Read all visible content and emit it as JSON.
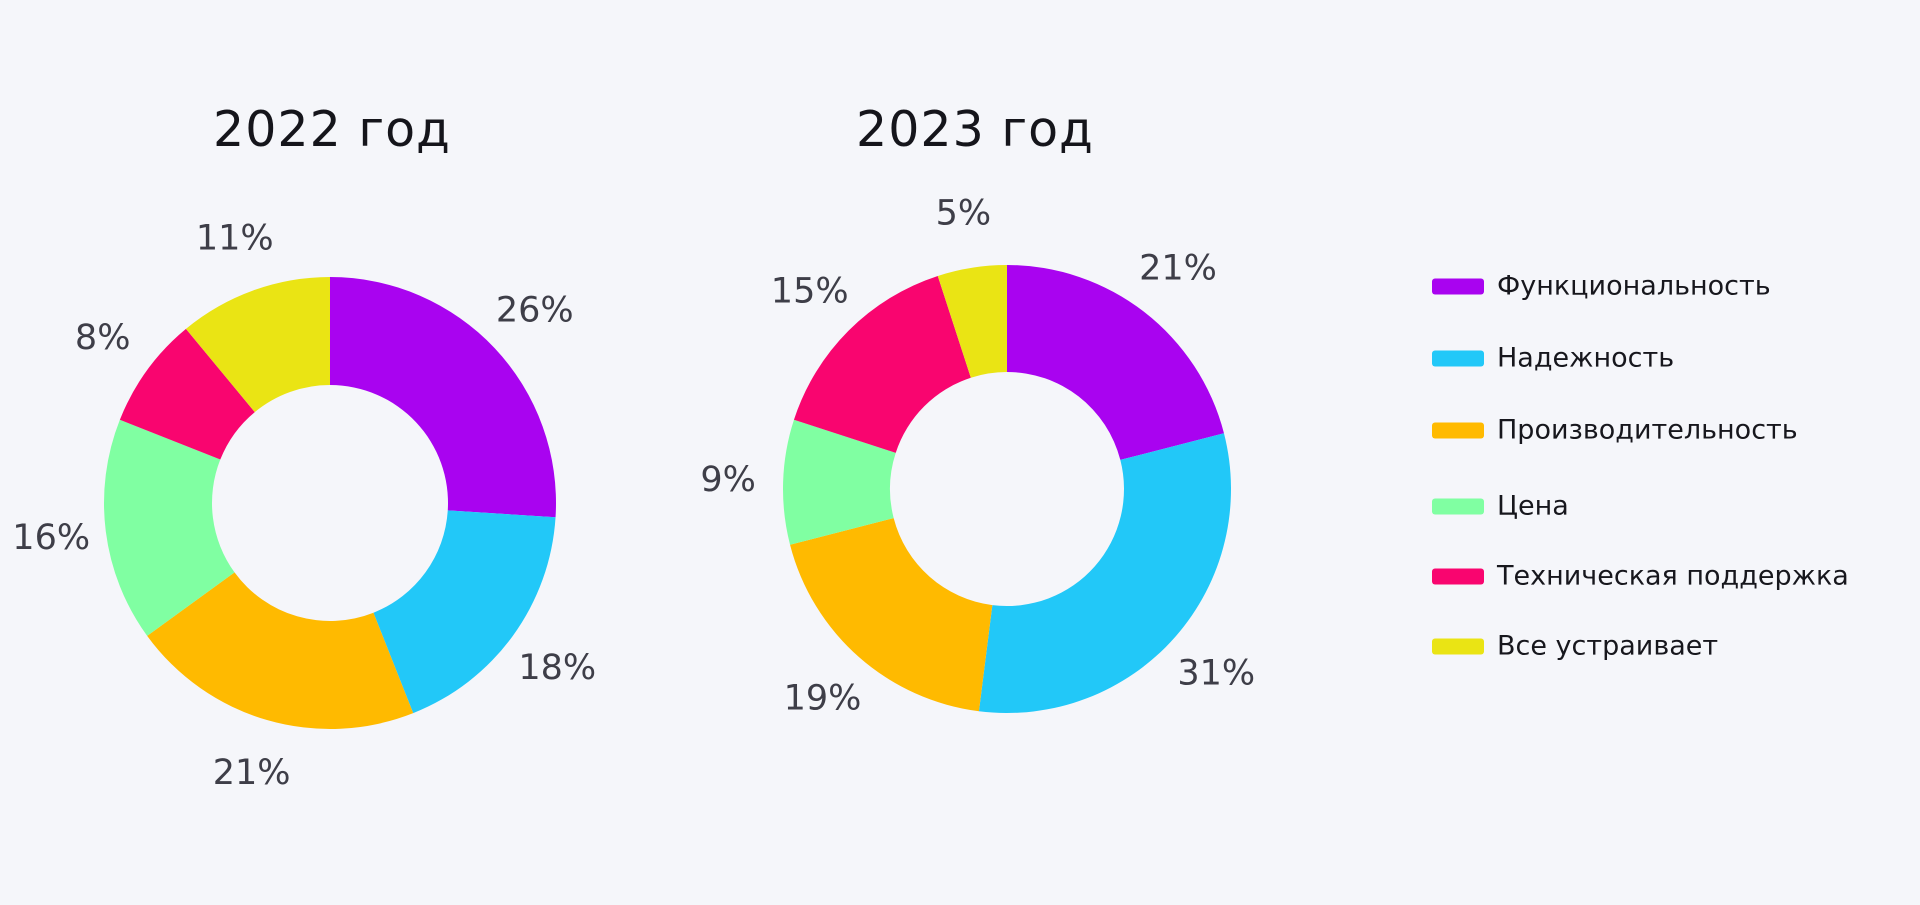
{
  "figure": {
    "background_color": "#F5F6FA",
    "label_text_color": "#3E3E48",
    "title_text_color": "#15151B"
  },
  "chart_data": [
    {
      "type": "pie",
      "subtype": "donut",
      "title": "2022 год",
      "categories": [
        "Функциональность",
        "Надежность",
        "Производительность",
        "Цена",
        "Техническая поддержка",
        "Все устраивает"
      ],
      "values": [
        26,
        18,
        21,
        16,
        8,
        11
      ],
      "labels": [
        "26%",
        "18%",
        "21%",
        "16%",
        "8%",
        "11%"
      ],
      "unit": "%",
      "start_angle_deg": 0,
      "direction": "clockwise"
    },
    {
      "type": "pie",
      "subtype": "donut",
      "title": "2023 год",
      "categories": [
        "Функциональность",
        "Надежность",
        "Производительность",
        "Цена",
        "Техническая поддержка",
        "Все устраивает"
      ],
      "values": [
        21,
        31,
        19,
        9,
        15,
        5
      ],
      "labels": [
        "21%",
        "31%",
        "19%",
        "9%",
        "15%",
        "5%"
      ],
      "unit": "%",
      "start_angle_deg": 0,
      "direction": "clockwise"
    }
  ],
  "series_colors": [
    "#A903F0",
    "#22C8F8",
    "#FFBA00",
    "#80FFA2",
    "#F9056F",
    "#EAE414"
  ],
  "legend": {
    "position": "right",
    "items": [
      {
        "label": "Функциональность",
        "color": "#A903F0"
      },
      {
        "label": "Надежность",
        "color": "#22C8F8"
      },
      {
        "label": "Производительность",
        "color": "#FFBA00"
      },
      {
        "label": "Цена",
        "color": "#80FFA2"
      },
      {
        "label": "Техническая поддержка",
        "color": "#F9056F"
      },
      {
        "label": "Все устраивает",
        "color": "#EAE414"
      }
    ]
  }
}
